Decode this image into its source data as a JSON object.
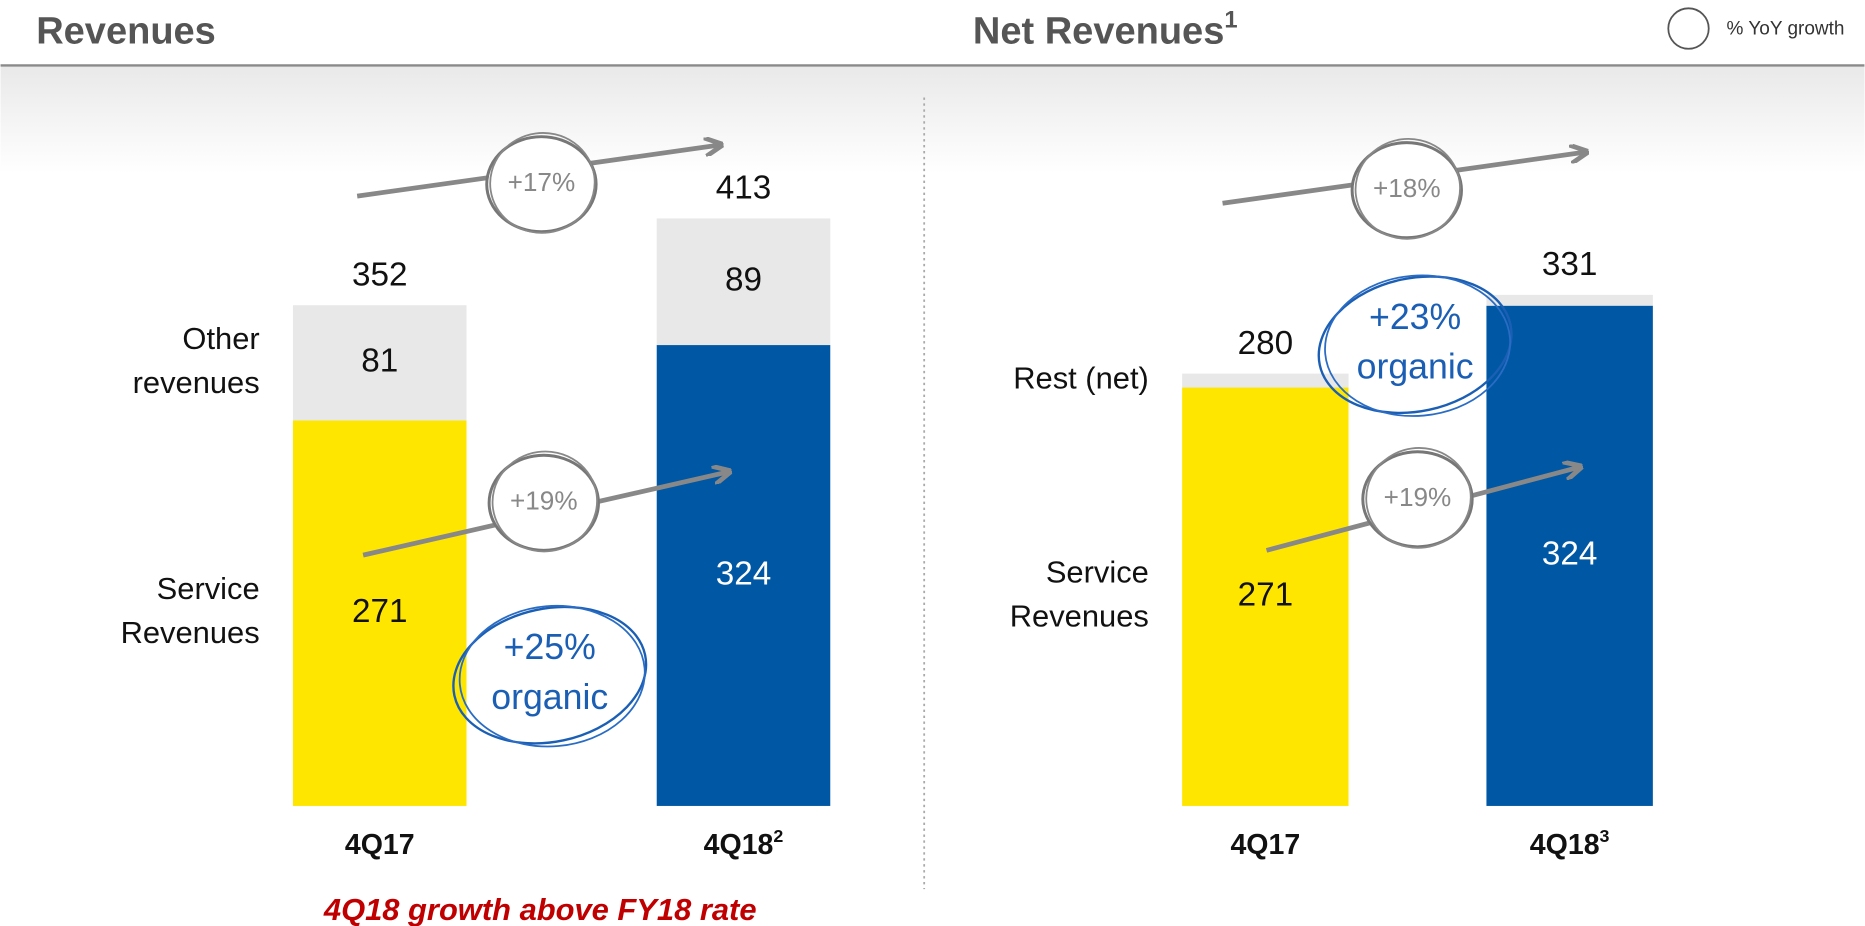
{
  "legend_label": "% YoY growth",
  "footer_note": "4Q18 growth above FY18 rate",
  "chart_data": [
    {
      "type": "stacked_bar",
      "title": "Revenues",
      "categories": [
        "4Q17",
        "4Q18"
      ],
      "category_superscripts": [
        null,
        "2"
      ],
      "series": [
        {
          "name": "Service Revenues",
          "colors": [
            "#FFE600",
            "#0057A4"
          ],
          "values": [
            271,
            324
          ]
        },
        {
          "name": "Other revenues",
          "color": "#E8E8E8",
          "values": [
            81,
            89
          ]
        }
      ],
      "totals": [
        352,
        413
      ],
      "ylim": [
        0,
        483
      ],
      "growth_labels": [
        "+17%",
        "+19%"
      ],
      "organic_label": "+25% organic"
    },
    {
      "type": "stacked_bar",
      "title": "Net Revenues",
      "title_superscript": "1",
      "categories": [
        "4Q17",
        "4Q18"
      ],
      "category_superscripts": [
        null,
        "3"
      ],
      "series": [
        {
          "name": "Service Revenues",
          "colors": [
            "#FFE600",
            "#0057A4"
          ],
          "values": [
            271,
            324
          ]
        },
        {
          "name": "Rest (net)",
          "color": "#E8E8E8",
          "values": [
            9,
            7
          ],
          "show_values": false
        }
      ],
      "totals": [
        280,
        331
      ],
      "ylim": [
        0,
        445
      ],
      "growth_labels": [
        "+18%",
        "+19%"
      ],
      "organic_label": "+23% organic"
    }
  ]
}
